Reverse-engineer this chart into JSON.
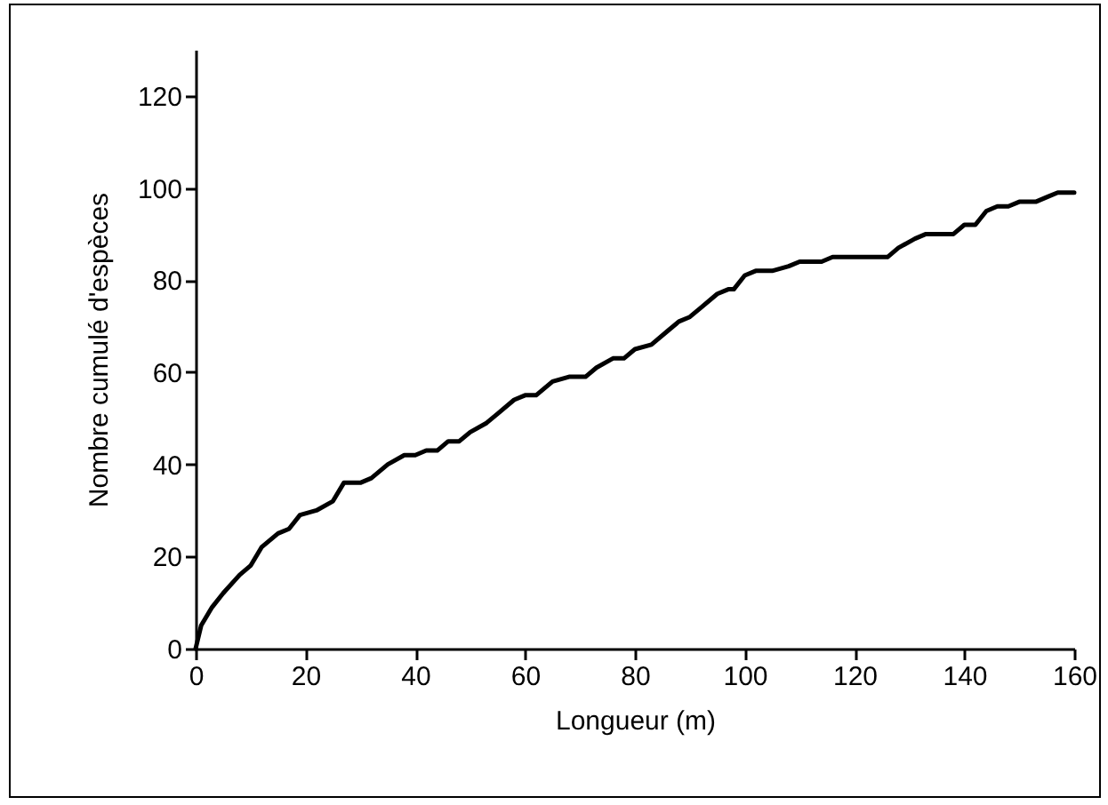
{
  "chart_data": {
    "type": "line",
    "xlabel": "Longueur (m)",
    "ylabel": "Nombre cumulé d'espèces",
    "x": [
      0,
      1,
      3,
      5,
      8,
      10,
      12,
      15,
      17,
      19,
      22,
      25,
      27,
      30,
      32,
      35,
      38,
      40,
      42,
      44,
      46,
      48,
      50,
      53,
      55,
      58,
      60,
      62,
      65,
      68,
      71,
      73,
      76,
      78,
      80,
      83,
      86,
      88,
      90,
      92,
      95,
      97,
      98,
      100,
      102,
      105,
      108,
      110,
      114,
      116,
      120,
      126,
      128,
      131,
      133,
      138,
      140,
      142,
      144,
      146,
      148,
      150,
      153,
      155,
      157,
      160
    ],
    "series": [
      {
        "color": "#000000",
        "values": [
          0,
          5,
          9,
          12,
          16,
          18,
          22,
          25,
          26,
          29,
          30,
          32,
          36,
          36,
          37,
          40,
          42,
          42,
          43,
          43,
          45,
          45,
          47,
          49,
          51,
          54,
          55,
          55,
          58,
          59,
          59,
          61,
          63,
          63,
          65,
          66,
          69,
          71,
          72,
          74,
          77,
          78,
          78,
          81,
          82,
          82,
          83,
          84,
          84,
          85,
          85,
          85,
          87,
          89,
          90,
          90,
          92,
          92,
          95,
          96,
          96,
          97,
          97,
          98,
          99,
          99
        ]
      }
    ],
    "xlim": [
      0,
      160
    ],
    "xticks": [
      0,
      20,
      40,
      60,
      80,
      100,
      120,
      140,
      160
    ],
    "ylim": [
      0,
      130
    ],
    "yticks": [
      0,
      20,
      40,
      60,
      80,
      100,
      120
    ],
    "grid": false,
    "marker": "none",
    "line_style": "solid"
  }
}
